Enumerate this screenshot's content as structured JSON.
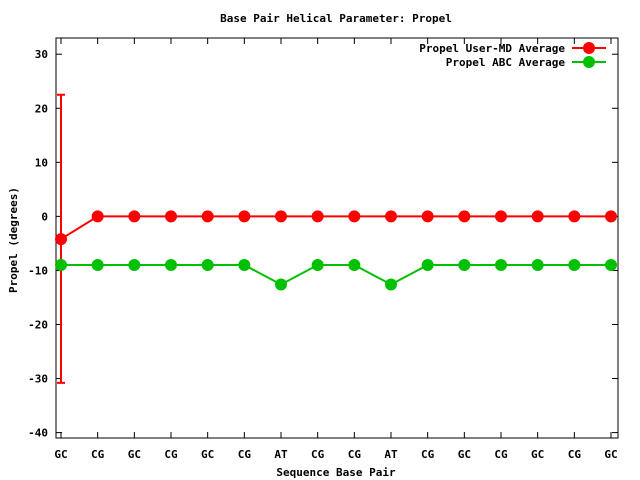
{
  "chart_data": {
    "type": "line",
    "title": "Base Pair Helical Parameter: Propel",
    "xlabel": "Sequence Base Pair",
    "ylabel": "Propel (degrees)",
    "categories": [
      "GC",
      "CG",
      "GC",
      "CG",
      "GC",
      "CG",
      "AT",
      "CG",
      "CG",
      "AT",
      "CG",
      "GC",
      "CG",
      "GC",
      "CG",
      "GC"
    ],
    "ylim": [
      -41,
      33
    ],
    "yticks": [
      30,
      20,
      10,
      0,
      -10,
      -20,
      -30,
      -40
    ],
    "grid": false,
    "legend_position": "top-right",
    "series": [
      {
        "name": "Propel User-MD Average",
        "color": "#ff0000",
        "values": [
          -4.2,
          0,
          0,
          0,
          0,
          0,
          0,
          0,
          0,
          0,
          0,
          0,
          0,
          0,
          0,
          0
        ],
        "error_bars": [
          {
            "index": 0,
            "low": -30.8,
            "high": 22.5
          }
        ]
      },
      {
        "name": "Propel ABC Average",
        "color": "#00c000",
        "values": [
          -9,
          -9,
          -9,
          -9,
          -9,
          -9,
          -12.6,
          -9,
          -9,
          -12.6,
          -9,
          -9,
          -9,
          -9,
          -9,
          -9
        ]
      }
    ]
  }
}
